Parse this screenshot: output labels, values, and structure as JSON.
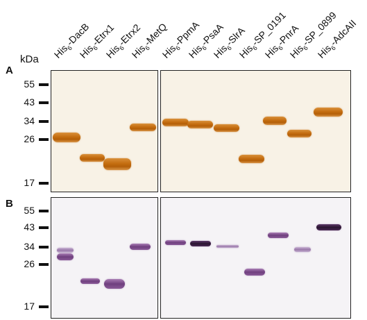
{
  "figure": {
    "unit_label": "kDa",
    "panels": [
      "A",
      "B"
    ],
    "lanes": [
      {
        "prefix": "His",
        "sub": "6",
        "suffix": "-DacB"
      },
      {
        "prefix": "His",
        "sub": "6",
        "suffix": "-Etrx1"
      },
      {
        "prefix": "His",
        "sub": "6",
        "suffix": "-Etrx2"
      },
      {
        "prefix": "His",
        "sub": "6",
        "suffix": "-MetQ"
      },
      {
        "prefix": "His",
        "sub": "6",
        "suffix": "-PpmA"
      },
      {
        "prefix": "His",
        "sub": "6",
        "suffix": "-PsaA"
      },
      {
        "prefix": "His",
        "sub": "6",
        "suffix": "-SlrA"
      },
      {
        "prefix": "His",
        "sub": "6",
        "suffix": "-SP_0191"
      },
      {
        "prefix": "His",
        "sub": "6",
        "suffix": "-PnrA"
      },
      {
        "prefix": "His",
        "sub": "6",
        "suffix": "-SP_0899"
      },
      {
        "prefix": "His",
        "sub": "6",
        "suffix": "-AdcAII"
      }
    ],
    "markers_a": [
      "55",
      "43",
      "34",
      "26",
      "17"
    ],
    "markers_b": [
      "55",
      "43",
      "34",
      "26",
      "17"
    ]
  }
}
